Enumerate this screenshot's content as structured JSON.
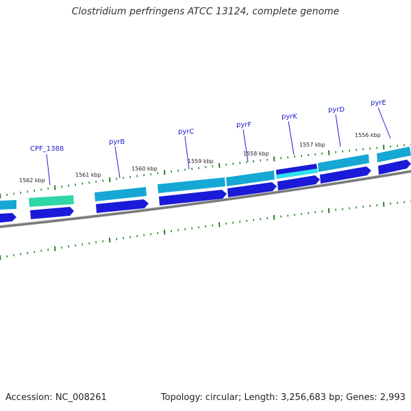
{
  "title": "Clostridium perfringens ATCC 13124, complete genome",
  "footer": {
    "accession": "Accession: NC_008261",
    "summary": "Topology: circular; Length: 3,256,683 bp; Genes: 2,993"
  },
  "colors": {
    "backbone": "#7a7a7a",
    "tick_green": "#1f7f1f",
    "feature_cyan": "#16a7d4",
    "feature_blue": "#1a1ad8",
    "feature_teal": "#2fd6a6",
    "label_blue": "#1a1acc"
  },
  "map": {
    "gene_labels": [
      "CPF_1388",
      "pyrB",
      "pyrC",
      "pyrF",
      "pyrK",
      "pyrD",
      "pyrE"
    ],
    "kbp_labels": [
      "1562 kbp",
      "1561 kbp",
      "1560 kbp",
      "1559 kbp",
      "1558 kbp",
      "1557 kbp",
      "1556 kbp"
    ]
  }
}
